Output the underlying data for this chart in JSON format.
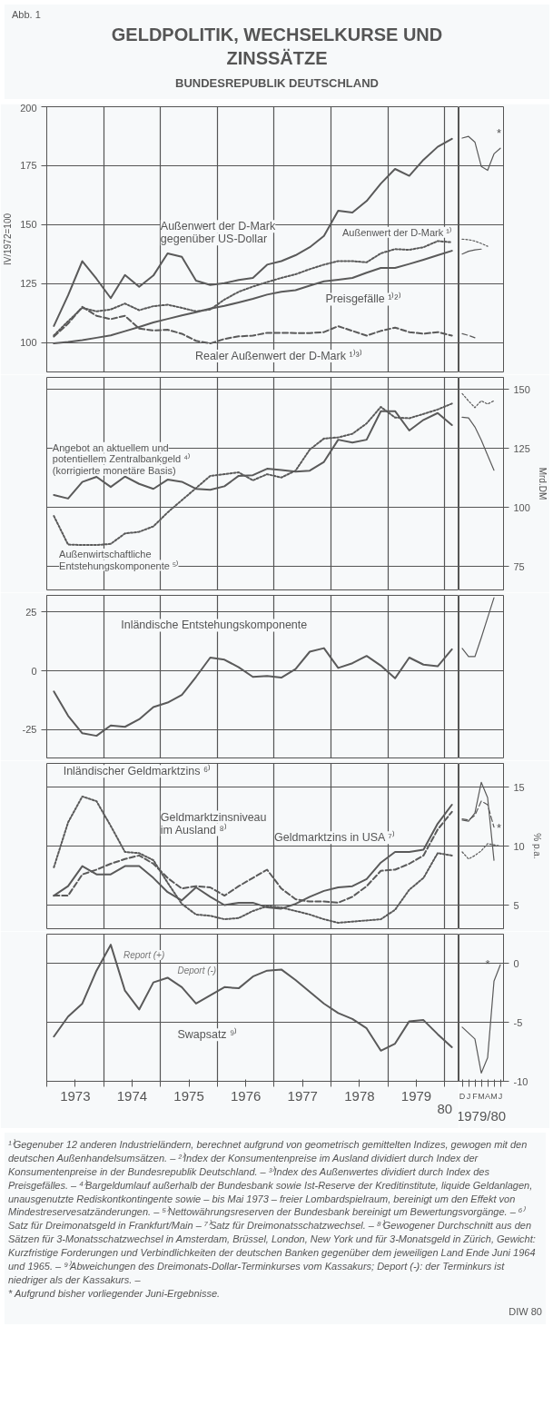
{
  "chart_data": [
    {
      "type": "line",
      "title": "GELDPOLITIK, WECHSELKURSE UND ZINSSÄTZE",
      "subtitle": "BUNDESREPUBLIK DEUTSCHLAND",
      "ylabel": "IV/1972=100",
      "annotations": [
        "Abb. 1"
      ],
      "x": [
        1973.125,
        1973.375,
        1973.625,
        1973.875,
        1974.125,
        1974.375,
        1974.625,
        1974.875,
        1975.125,
        1975.375,
        1975.625,
        1975.875,
        1976.125,
        1976.375,
        1976.625,
        1976.875,
        1977.125,
        1977.375,
        1977.625,
        1977.875,
        1978.125,
        1978.375,
        1978.625,
        1978.875,
        1979.125,
        1979.375,
        1979.625,
        1979.875,
        1980.125
      ],
      "series": [
        {
          "name": "Außenwert der D-Mark ¹⁾",
          "color": "#5a5a5a",
          "line_style": "dotted",
          "values": [
            103,
            109,
            114.7,
            113.2,
            114,
            116.5,
            113.7,
            115.4,
            116,
            114.7,
            113.2,
            114,
            118.2,
            121.5,
            123.7,
            125.6,
            127.4,
            128.9,
            131.1,
            133,
            134.5,
            134.5,
            134,
            137.8,
            139.6,
            139.3,
            140.4,
            143,
            142.5
          ]
        },
        {
          "name": "Außenwert der D-Mark gegenüber US-Dollar",
          "color": "#5a5a5a",
          "line_style": "solid",
          "values": [
            107,
            120,
            134.5,
            127,
            118.8,
            128.6,
            123.6,
            128.4,
            137.8,
            136.3,
            126.2,
            124.4,
            125.2,
            126.5,
            127.4,
            133,
            134.5,
            137,
            140.4,
            145.2,
            155.9,
            155.1,
            160,
            167.4,
            173.6,
            170.7,
            177.5,
            183,
            186.4
          ]
        },
        {
          "name": "Preisgefälle ¹⁾²⁾",
          "color": "#5a5a5a",
          "line_style": "solid",
          "values": [
            99.6,
            100.2,
            101,
            102,
            103,
            104.8,
            106.6,
            108.5,
            110,
            111.5,
            112.8,
            114.4,
            115.5,
            117,
            118.5,
            120.3,
            121.5,
            122.2,
            124.1,
            125.9,
            126.6,
            127.4,
            129.6,
            131.6,
            131.6,
            133.3,
            135.1,
            137,
            138.9
          ]
        },
        {
          "name": "Realer Außenwert der D-Mark ¹⁾³⁾",
          "color": "#5a5a5a",
          "line_style": "dashed",
          "values": [
            102.5,
            108,
            115.1,
            111.3,
            109.9,
            111.3,
            105.9,
            105.1,
            105.4,
            103.7,
            100.7,
            99.6,
            101.5,
            102.6,
            102.9,
            104.1,
            104.1,
            104,
            104,
            104.4,
            106.9,
            104.9,
            102.9,
            104.9,
            106.3,
            104.4,
            103.7,
            104.4,
            102.9
          ]
        }
      ],
      "xlim": [
        1973,
        1980.25
      ],
      "xticks": [
        {
          "value": 1973,
          "label": null
        },
        {
          "value": 1973.5,
          "label": "1973"
        },
        {
          "value": 1974,
          "label": null
        },
        {
          "value": 1974.5,
          "label": "1974"
        },
        {
          "value": 1975,
          "label": null
        },
        {
          "value": 1975.5,
          "label": "1975"
        },
        {
          "value": 1976,
          "label": null
        },
        {
          "value": 1976.5,
          "label": "1976"
        },
        {
          "value": 1977,
          "label": null
        },
        {
          "value": 1977.5,
          "label": "1977"
        },
        {
          "value": 1978,
          "label": null
        },
        {
          "value": 1978.5,
          "label": "1978"
        },
        {
          "value": 1979,
          "label": null
        },
        {
          "value": 1979.5,
          "label": "1979"
        },
        {
          "value": 1980,
          "label": null
        },
        {
          "value": 1980.25,
          "label": null
        }
      ],
      "ylim": [
        87.5,
        200
      ],
      "yticks": [
        100,
        125,
        150,
        175,
        200
      ],
      "grid": true,
      "tick_labels": "y"
    },
    {
      "type": "line",
      "categories": [
        "D",
        "J",
        "F",
        "M",
        "A",
        "M",
        "J"
      ],
      "series": [
        {
          "color": "#5a5a5a",
          "line_style": "dotted",
          "values": [
            143.8,
            143.6,
            143,
            142,
            140.8,
            null,
            null
          ]
        },
        {
          "color": "#5a5a5a",
          "line_style": "solid",
          "values": [
            186.7,
            187.4,
            185,
            174.7,
            173,
            180,
            182.4
          ]
        },
        {
          "color": "#5a5a5a",
          "line_style": "solid",
          "values": [
            137.5,
            138.7,
            139.3,
            139.6,
            null,
            null,
            null
          ]
        },
        {
          "color": "#5a5a5a",
          "line_style": "dashed",
          "values": [
            103.7,
            103,
            102,
            null,
            null,
            null,
            null
          ]
        }
      ],
      "annotations": [
        "*"
      ],
      "ylim": [
        87.5,
        200
      ],
      "yticks": [
        100,
        125,
        150,
        175,
        200
      ],
      "grid": "y",
      "tick_labels": false
    },
    {
      "type": "line",
      "x": [
        1973.125,
        1973.375,
        1973.625,
        1973.875,
        1974.125,
        1974.375,
        1974.625,
        1974.875,
        1975.125,
        1975.375,
        1975.625,
        1975.875,
        1976.125,
        1976.375,
        1976.625,
        1976.875,
        1977.125,
        1977.375,
        1977.625,
        1977.875,
        1978.125,
        1978.375,
        1978.625,
        1978.875,
        1979.125,
        1979.375,
        1979.625,
        1979.875,
        1980.125
      ],
      "series": [
        {
          "name": "Angebot an aktuellem und potentiellem Zentralbankgeld ⁴⁾ (korrigierte monetäre Basis)",
          "color": "#5a5a5a",
          "line_style": "solid",
          "values": [
            105.2,
            103.7,
            110.7,
            112.9,
            108.6,
            113,
            109.9,
            107.8,
            111.7,
            110.8,
            107.8,
            107.4,
            108.9,
            113.3,
            113.6,
            116.3,
            115.8,
            115.1,
            115.5,
            119.2,
            128.6,
            127.4,
            128.6,
            140.7,
            140.7,
            132.5,
            137,
            139.9,
            134.8
          ]
        },
        {
          "name": "Außenwirtschaftliche Entstehungskomponente ⁵⁾",
          "color": "#5a5a5a",
          "line_style": "dotted",
          "values": [
            96.3,
            84.2,
            84,
            84,
            84.5,
            88.9,
            89.6,
            91.9,
            97.8,
            103,
            108.1,
            113.3,
            114,
            114.8,
            111.4,
            114,
            112.6,
            115.5,
            124.4,
            129.1,
            129.6,
            131.1,
            135.5,
            142.5,
            138,
            137.7,
            139.5,
            141.4,
            143.9
          ]
        }
      ],
      "xlim": [
        1973,
        1980.25
      ],
      "xticks": [
        {
          "value": 1973,
          "label": null
        },
        {
          "value": 1973.5,
          "label": "1973"
        },
        {
          "value": 1974,
          "label": null
        },
        {
          "value": 1974.5,
          "label": "1974"
        },
        {
          "value": 1975,
          "label": null
        },
        {
          "value": 1975.5,
          "label": "1975"
        },
        {
          "value": 1976,
          "label": null
        },
        {
          "value": 1976.5,
          "label": "1976"
        },
        {
          "value": 1977,
          "label": null
        },
        {
          "value": 1977.5,
          "label": "1977"
        },
        {
          "value": 1978,
          "label": null
        },
        {
          "value": 1978.5,
          "label": "1978"
        },
        {
          "value": 1979,
          "label": null
        },
        {
          "value": 1979.5,
          "label": "1979"
        },
        {
          "value": 1980,
          "label": null
        },
        {
          "value": 1980.25,
          "label": null
        }
      ],
      "ylim": [
        65,
        155
      ],
      "yticks": [
        75,
        100,
        125,
        150
      ],
      "grid": true,
      "tick_labels": false
    },
    {
      "type": "line",
      "categories": [
        "D",
        "J",
        "F",
        "M",
        "A",
        "M",
        "J"
      ],
      "ylabel": "Mrd.DM",
      "series": [
        {
          "color": "#5a5a5a",
          "line_style": "solid",
          "values": [
            138.1,
            137.8,
            134,
            128.5,
            122,
            115.7,
            null
          ]
        },
        {
          "color": "#5a5a5a",
          "line_style": "dotted",
          "values": [
            148.1,
            145,
            142.2,
            145.1,
            143.7,
            145.1,
            null
          ]
        }
      ],
      "ylim": [
        65,
        155
      ],
      "yticks": [
        75,
        100,
        125,
        150
      ],
      "grid": "y",
      "tick_labels": "y"
    },
    {
      "type": "line",
      "x": [
        1973.125,
        1973.375,
        1973.625,
        1973.875,
        1974.125,
        1974.375,
        1974.625,
        1974.875,
        1975.125,
        1975.375,
        1975.625,
        1975.875,
        1976.125,
        1976.375,
        1976.625,
        1976.875,
        1977.125,
        1977.375,
        1977.625,
        1977.875,
        1978.125,
        1978.375,
        1978.625,
        1978.875,
        1979.125,
        1979.375,
        1979.625,
        1979.875,
        1980.125
      ],
      "series": [
        {
          "name": "Inländische Entstehungskomponente",
          "color": "#5a5a5a",
          "line_style": "solid",
          "values": [
            -8.8,
            -19.1,
            -26.5,
            -27.6,
            -23.2,
            -23.8,
            -20.6,
            -15.4,
            -13.5,
            -10.3,
            -2.6,
            5.6,
            4.7,
            1.5,
            -2.6,
            -2.2,
            -2.9,
            0.7,
            8.1,
            9.6,
            1.2,
            3.2,
            6.3,
            2.2,
            -3.2,
            5.6,
            2.6,
            1.9,
            9.1
          ]
        }
      ],
      "xlim": [
        1973,
        1980.25
      ],
      "xticks": [
        {
          "value": 1973,
          "label": null
        },
        {
          "value": 1973.5,
          "label": "1973"
        },
        {
          "value": 1974,
          "label": null
        },
        {
          "value": 1974.5,
          "label": "1974"
        },
        {
          "value": 1975,
          "label": null
        },
        {
          "value": 1975.5,
          "label": "1975"
        },
        {
          "value": 1976,
          "label": null
        },
        {
          "value": 1976.5,
          "label": "1976"
        },
        {
          "value": 1977,
          "label": null
        },
        {
          "value": 1977.5,
          "label": "1977"
        },
        {
          "value": 1978,
          "label": null
        },
        {
          "value": 1978.5,
          "label": "1978"
        },
        {
          "value": 1979,
          "label": null
        },
        {
          "value": 1979.5,
          "label": "1979"
        },
        {
          "value": 1980,
          "label": null
        },
        {
          "value": 1980.25,
          "label": null
        }
      ],
      "ylim": [
        -37,
        32
      ],
      "yticks": [
        -25,
        0,
        25
      ],
      "grid": true,
      "tick_labels": "y"
    },
    {
      "type": "line",
      "categories": [
        "D",
        "J",
        "F",
        "M",
        "A",
        "M",
        "J"
      ],
      "series": [
        {
          "color": "#5a5a5a",
          "line_style": "solid",
          "values": [
            9.5,
            6,
            6,
            14,
            22.5,
            31,
            null
          ]
        }
      ],
      "ylim": [
        -37,
        32
      ],
      "yticks": [
        -25,
        0,
        25
      ],
      "grid": "y",
      "tick_labels": false
    },
    {
      "type": "line",
      "x": [
        1973.125,
        1973.375,
        1973.625,
        1973.875,
        1974.125,
        1974.375,
        1974.625,
        1974.875,
        1975.125,
        1975.375,
        1975.625,
        1975.875,
        1976.125,
        1976.375,
        1976.625,
        1976.875,
        1977.125,
        1977.375,
        1977.625,
        1977.875,
        1978.125,
        1978.375,
        1978.625,
        1978.875,
        1979.125,
        1979.375,
        1979.625,
        1979.875,
        1980.125
      ],
      "series": [
        {
          "name": "Inländischer Geldmarktzins ⁶⁾",
          "color": "#5a5a5a",
          "line_style": "dotted",
          "values": [
            8.2,
            12,
            14.2,
            13.8,
            11.7,
            9.5,
            9.4,
            8.8,
            6.9,
            5.1,
            4.2,
            4.1,
            3.8,
            3.9,
            4.5,
            4.9,
            4.8,
            4.5,
            4.2,
            3.8,
            3.5,
            3.6,
            3.7,
            3.8,
            4.6,
            6.3,
            7.3,
            9.4,
            9.2
          ]
        },
        {
          "name": "Geldmarktzins in USA ⁷⁾",
          "color": "#5a5a5a",
          "line_style": "solid",
          "values": [
            5.8,
            6.6,
            8.3,
            7.6,
            7.6,
            8.3,
            8.3,
            7.3,
            6.1,
            5.4,
            6.5,
            5.7,
            5,
            5.2,
            5.2,
            4.8,
            4.7,
            5.1,
            5.7,
            6.2,
            6.5,
            6.6,
            7.2,
            8.6,
            9.5,
            9.5,
            9.7,
            11.9,
            13.5
          ]
        },
        {
          "name": "Geldmarktzinsniveau im Ausland ⁸⁾",
          "color": "#5a5a5a",
          "line_style": "dashed",
          "values": [
            5.8,
            5.8,
            7.6,
            8,
            8.5,
            8.9,
            9.2,
            8.5,
            7.3,
            6.4,
            6.6,
            6.5,
            5.8,
            6.6,
            7.3,
            8,
            6.4,
            5.5,
            5.3,
            5.3,
            5.2,
            5.7,
            6.6,
            7.9,
            8,
            8.5,
            9.2,
            11.4,
            12.9
          ]
        }
      ],
      "xlim": [
        1973,
        1980.25
      ],
      "xticks": [
        {
          "value": 1973,
          "label": null
        },
        {
          "value": 1973.5,
          "label": "1973"
        },
        {
          "value": 1974,
          "label": null
        },
        {
          "value": 1974.5,
          "label": "1974"
        },
        {
          "value": 1975,
          "label": null
        },
        {
          "value": 1975.5,
          "label": "1975"
        },
        {
          "value": 1976,
          "label": null
        },
        {
          "value": 1976.5,
          "label": "1976"
        },
        {
          "value": 1977,
          "label": null
        },
        {
          "value": 1977.5,
          "label": "1977"
        },
        {
          "value": 1978,
          "label": null
        },
        {
          "value": 1978.5,
          "label": "1978"
        },
        {
          "value": 1979,
          "label": null
        },
        {
          "value": 1979.5,
          "label": "1979"
        },
        {
          "value": 1980,
          "label": null
        },
        {
          "value": 1980.25,
          "label": null
        }
      ],
      "ylim": [
        3,
        17
      ],
      "yticks": [
        5,
        10,
        15
      ],
      "grid": true,
      "tick_labels": false
    },
    {
      "type": "line",
      "categories": [
        "D",
        "J",
        "F",
        "M",
        "A",
        "M",
        "J"
      ],
      "ylabel": "% p.a.",
      "series": [
        {
          "color": "#5a5a5a",
          "line_style": "dotted",
          "values": [
            9.5,
            8.9,
            9.2,
            9.6,
            10.2,
            10.1,
            10
          ]
        },
        {
          "color": "#5a5a5a",
          "line_style": "solid",
          "values": [
            12.2,
            12.1,
            12.8,
            15.4,
            14.1,
            8.8,
            null
          ]
        },
        {
          "color": "#5a5a5a",
          "line_style": "dashed",
          "values": [
            12.3,
            12.2,
            12.6,
            13.8,
            13.5,
            11.6,
            null
          ]
        }
      ],
      "annotations": [
        "*"
      ],
      "ylim": [
        3,
        17
      ],
      "yticks": [
        5,
        10,
        15
      ],
      "grid": "y",
      "tick_labels": "y"
    },
    {
      "type": "line",
      "x": [
        1973.125,
        1973.375,
        1973.625,
        1973.875,
        1974.125,
        1974.375,
        1974.625,
        1974.875,
        1975.125,
        1975.375,
        1975.625,
        1975.875,
        1976.125,
        1976.375,
        1976.625,
        1976.875,
        1977.125,
        1977.375,
        1977.625,
        1977.875,
        1978.125,
        1978.375,
        1978.625,
        1978.875,
        1979.125,
        1979.375,
        1979.625,
        1979.875,
        1980.125
      ],
      "series": [
        {
          "name": "Swapsatz ⁹⁾",
          "color": "#5a5a5a",
          "line_style": "solid",
          "values": [
            -6.2,
            -4.5,
            -3.4,
            -0.6,
            1.6,
            -2.3,
            -3.9,
            -1.6,
            -1.2,
            -2,
            -3.4,
            -2.7,
            -2,
            -2.1,
            -1.1,
            -0.6,
            -0.5,
            -1.4,
            -2.4,
            -3.4,
            -4.2,
            -4.7,
            -5.5,
            -7.4,
            -6.8,
            -4.9,
            -4.8,
            -6,
            -7.1
          ]
        }
      ],
      "annotations": [
        "Report (+)",
        "Deport (-)",
        "80",
        "¹⁾Gegenuber 12 anderen Industrieländern, berechnet aufgrund von geometrisch gemittelten Indizes, gewogen mit den deutschen Außenhandelsumsätzen. – ²⁾Index der Konsumentenpreise im Ausland dividiert durch Index der Konsumentenpreise in der Bundesrepublik Deutschland. – ³⁾Index des Außenwertes dividiert durch Index des Preisgefälles. – ⁴⁾Bargeldumlauf außerhalb der Bundesbank sowie Ist-Reserve der Kreditinstitute, liquide Geldanlagen, unausgenutzte Rediskontkontingente sowie – bis Mai 1973 – freier Lombardspielraum, bereinigt um den Effekt von Mindestreservesatzänderungen. – ⁵⁾Nettowährungsreserven der Bundesbank bereinigt um Bewertungsvorgänge. – ⁶⁾Satz für Dreimonatsgeld in Frankfurt/Main – ⁷⁾Satz für Dreimonatsschatzwechsel. – ⁸⁾Gewogener Durchschnitt aus den Sätzen für 3-Monatsschatzwechsel in Amsterdam, Brüssel, London, New York und für 3-Monatsgeld in Zürich, Gewicht: Kurzfristige Forderungen und Verbindlichkeiten der deutschen Banken gegenüber dem jeweiligen Land Ende Juni 1964 und 1965. – ⁹⁾Abweichungen des Dreimonats-Dollar-Terminkurses vom Kassakurs; Deport (-): der Terminkurs ist niedriger als der Kassakurs. –",
        "* Aufgrund bisher vorliegender Juni-Ergebnisse.",
        "DIW 80"
      ],
      "xlim": [
        1973,
        1980.25
      ],
      "xticks": [
        {
          "value": 1973,
          "label": null
        },
        {
          "value": 1973.5,
          "label": "1973"
        },
        {
          "value": 1974,
          "label": null
        },
        {
          "value": 1974.5,
          "label": "1974"
        },
        {
          "value": 1975,
          "label": null
        },
        {
          "value": 1975.5,
          "label": "1975"
        },
        {
          "value": 1976,
          "label": null
        },
        {
          "value": 1976.5,
          "label": "1976"
        },
        {
          "value": 1977,
          "label": null
        },
        {
          "value": 1977.5,
          "label": "1977"
        },
        {
          "value": 1978,
          "label": null
        },
        {
          "value": 1978.5,
          "label": "1978"
        },
        {
          "value": 1979,
          "label": null
        },
        {
          "value": 1979.5,
          "label": "1979"
        },
        {
          "value": 1980,
          "label": null
        },
        {
          "value": 1980.25,
          "label": null
        }
      ],
      "ylim": [
        -10,
        2.5
      ],
      "yticks": [
        -10,
        -5,
        0
      ],
      "grid": true,
      "tick_labels": "x"
    },
    {
      "type": "line",
      "categories": [
        "D",
        "J",
        "F",
        "M",
        "A",
        "M",
        "J"
      ],
      "xlabel": "1979/80",
      "series": [
        {
          "color": "#5a5a5a",
          "line_style": "solid",
          "values": [
            -5.4,
            -5.9,
            -6.4,
            -9.3,
            -8,
            -1.5,
            -0.1
          ]
        }
      ],
      "annotations": [
        "*"
      ],
      "ylim": [
        -10,
        2.5
      ],
      "yticks": [
        -10,
        -5,
        0
      ],
      "grid": "y"
    }
  ]
}
